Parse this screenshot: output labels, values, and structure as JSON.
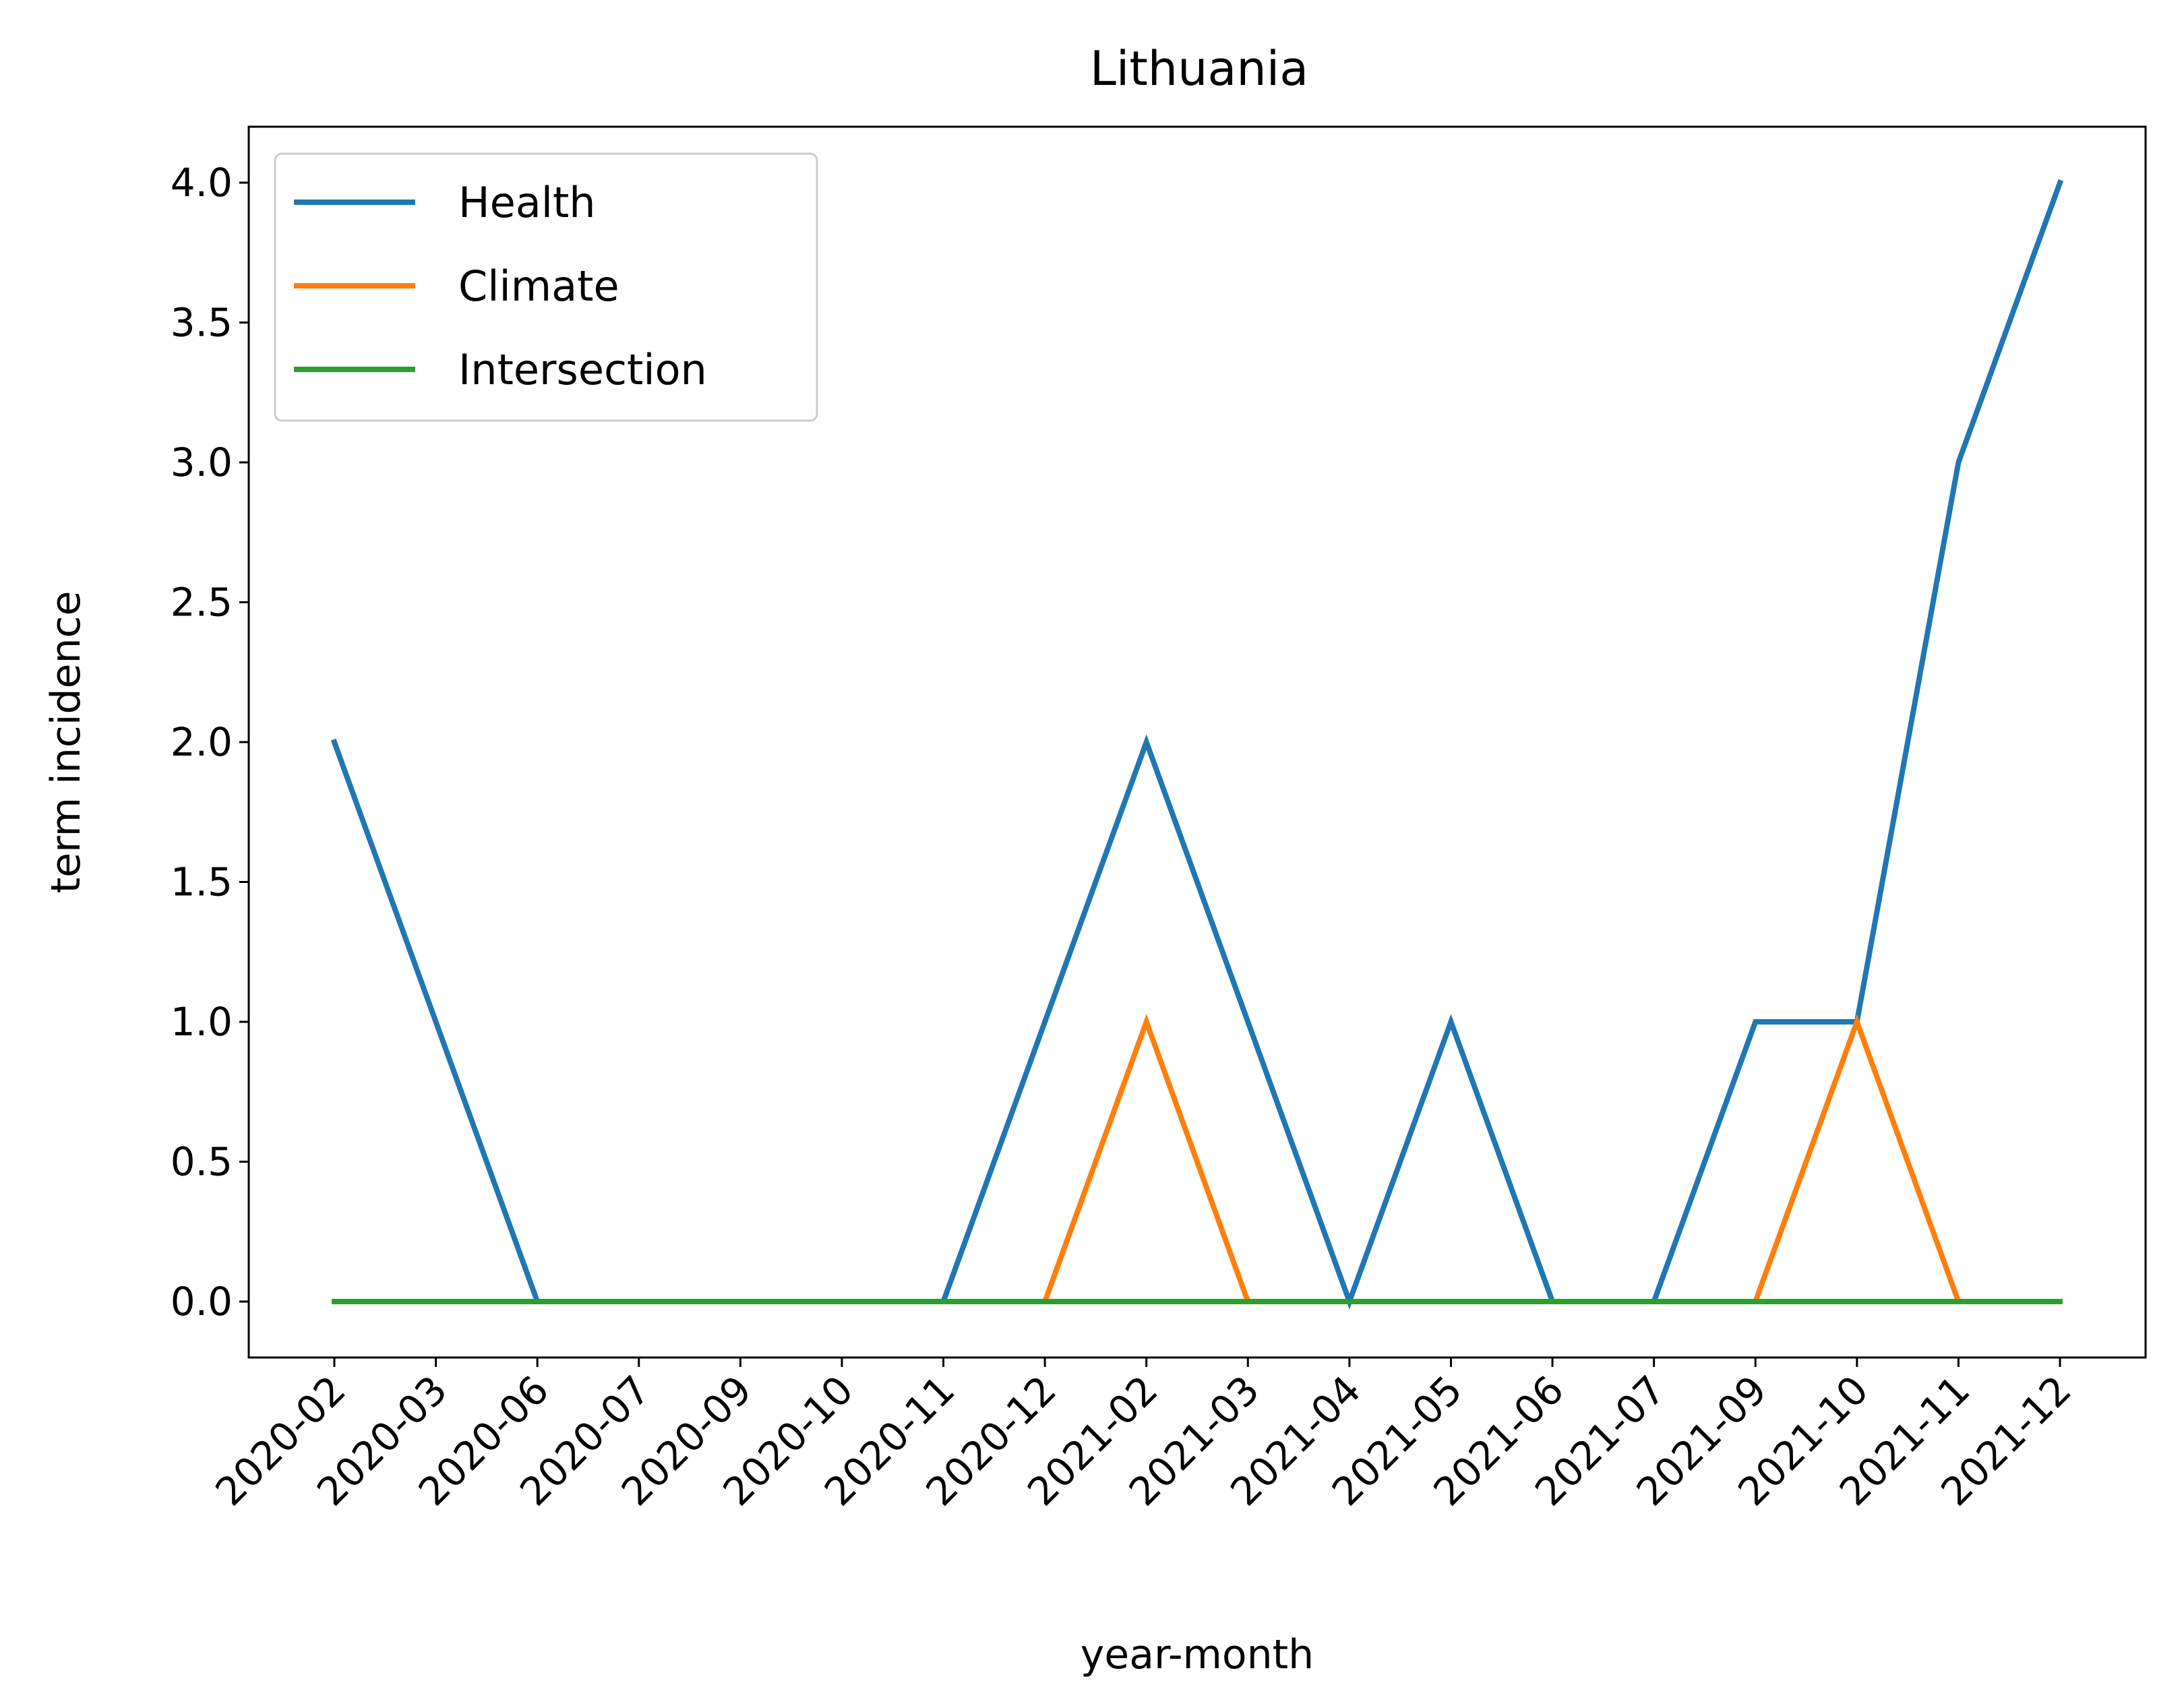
{
  "chart_data": {
    "type": "line",
    "title": "Lithuania",
    "xlabel": "year-month",
    "ylabel": "term incidence",
    "categories": [
      "2020-02",
      "2020-03",
      "2020-06",
      "2020-07",
      "2020-09",
      "2020-10",
      "2020-11",
      "2020-12",
      "2021-02",
      "2021-03",
      "2021-04",
      "2021-05",
      "2021-06",
      "2021-07",
      "2021-09",
      "2021-10",
      "2021-11",
      "2021-12"
    ],
    "y_ticks": [
      "0.0",
      "0.5",
      "1.0",
      "1.5",
      "2.0",
      "2.5",
      "3.0",
      "3.5",
      "4.0"
    ],
    "ylim": [
      -0.2,
      4.2
    ],
    "grid": false,
    "legend_position": "upper-left",
    "x_tick_rotation_deg": 45,
    "series": [
      {
        "name": "Health",
        "color": "#1f77b4",
        "values": [
          2,
          1,
          0,
          0,
          0,
          0,
          0,
          1,
          2,
          1,
          0,
          1,
          0,
          0,
          1,
          1,
          3,
          4
        ]
      },
      {
        "name": "Climate",
        "color": "#ff7f0e",
        "values": [
          0,
          0,
          0,
          0,
          0,
          0,
          0,
          0,
          1,
          0,
          0,
          0,
          0,
          0,
          0,
          1,
          0,
          0
        ]
      },
      {
        "name": "Intersection",
        "color": "#2ca02c",
        "values": [
          0,
          0,
          0,
          0,
          0,
          0,
          0,
          0,
          0,
          0,
          0,
          0,
          0,
          0,
          0,
          0,
          0,
          0
        ]
      }
    ]
  }
}
